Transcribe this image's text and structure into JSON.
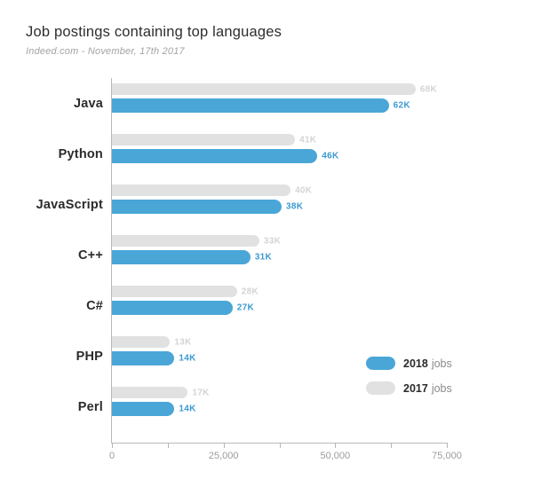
{
  "page": {
    "title": "Job postings containing top languages",
    "subtitle": "Indeed.com - November, 17th 2017"
  },
  "legend": {
    "items": [
      {
        "year": "2018",
        "suffix": "jobs",
        "color": "#4ba6d8"
      },
      {
        "year": "2017",
        "suffix": "jobs",
        "color": "#e1e1e1"
      }
    ]
  },
  "chart_data": {
    "type": "bar",
    "orientation": "horizontal",
    "title": "Job postings containing top languages",
    "subtitle": "Indeed.com - November, 17th 2017",
    "categories": [
      "Java",
      "Python",
      "JavaScript",
      "C++",
      "C#",
      "PHP",
      "Perl"
    ],
    "series": [
      {
        "name": "2017 jobs",
        "year": "2017",
        "color": "#e1e1e1",
        "label_color": "#d4d4d4",
        "values": [
          68000,
          41000,
          40000,
          33000,
          28000,
          13000,
          17000
        ],
        "labels": [
          "68K",
          "41K",
          "40K",
          "33K",
          "28K",
          "13K",
          "17K"
        ]
      },
      {
        "name": "2018 jobs",
        "year": "2018",
        "color": "#4ba6d8",
        "label_color": "#3c9ad2",
        "values": [
          62000,
          46000,
          38000,
          31000,
          27000,
          14000,
          14000
        ],
        "labels": [
          "62K",
          "46K",
          "38K",
          "31K",
          "27K",
          "14K",
          "14K"
        ]
      }
    ],
    "xlim": [
      0,
      75000
    ],
    "x_ticks": [
      0,
      12500,
      25000,
      37500,
      50000,
      62500,
      75000
    ],
    "x_tick_labels": [
      "0",
      "",
      "25,000",
      "",
      "50,000",
      "",
      "75,000"
    ],
    "xlabel": "",
    "ylabel": "",
    "grid": false,
    "legend_position": "right-center"
  }
}
